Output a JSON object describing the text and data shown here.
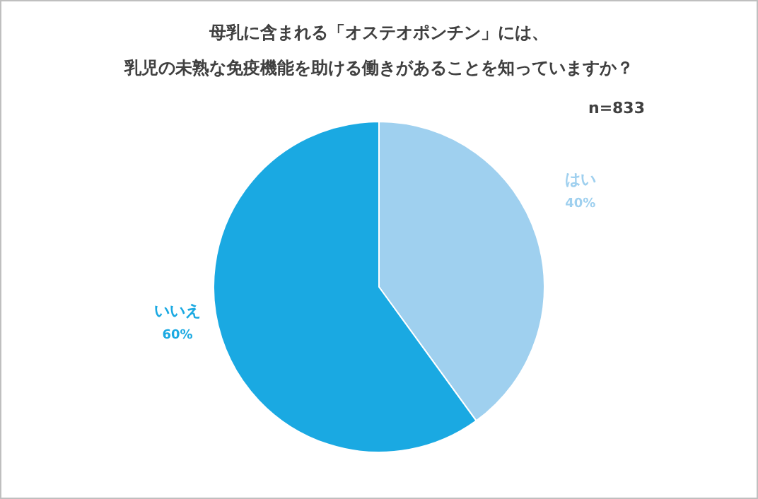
{
  "chart_data": {
    "type": "pie",
    "title": "母乳に含まれる「オステオポンチン」には、",
    "subtitle": "乳児の未熟な免疫機能を助ける働きがあることを知っていますか？",
    "annotations": [
      "n=833"
    ],
    "categories": [
      "はい",
      "いいえ"
    ],
    "values": [
      40,
      60
    ],
    "value_labels": [
      "40%",
      "60%"
    ],
    "colors": [
      "#9fd0ef",
      "#1aa9e2"
    ]
  }
}
